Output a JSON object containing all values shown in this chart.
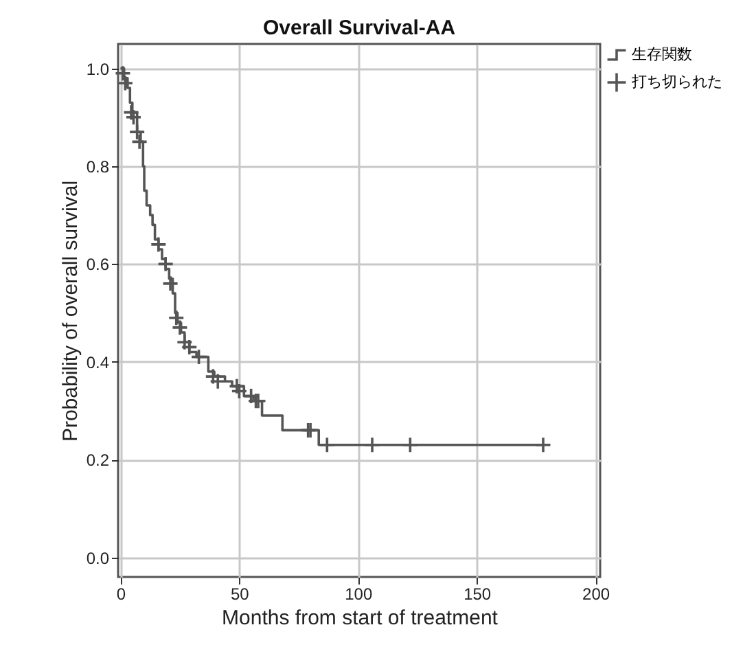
{
  "chart_data": {
    "type": "step",
    "title": "Overall Survival-AA",
    "xlabel": "Months from start of treatment",
    "ylabel": "Probability of overall survival",
    "xlim": [
      -1,
      202
    ],
    "xticks": [
      0,
      50,
      100,
      150,
      200
    ],
    "ylim": [
      -0.04,
      1.05
    ],
    "yticks": [
      {
        "value": 0,
        "label": "0.0"
      },
      0.2,
      0.4,
      0.6,
      0.8,
      {
        "value": 1,
        "label": "1.0"
      }
    ],
    "grid": true,
    "legend": "top right",
    "series": [
      {
        "name": "生存関数",
        "color": "#555555",
        "x": [
          0,
          1.5,
          3,
          4,
          5,
          7,
          8.5,
          9.5,
          10,
          11,
          12.5,
          13.5,
          14.5,
          16,
          17.5,
          19,
          20.5,
          22,
          23,
          24,
          25.5,
          27,
          29,
          32,
          37,
          39.5,
          44,
          47,
          52,
          56,
          59.6,
          68.2,
          83.5,
          178.3
        ],
        "values": [
          1.0,
          0.98,
          0.96,
          0.93,
          0.91,
          0.87,
          0.85,
          0.8,
          0.75,
          0.72,
          0.7,
          0.68,
          0.65,
          0.63,
          0.61,
          0.59,
          0.57,
          0.54,
          0.5,
          0.48,
          0.46,
          0.44,
          0.42,
          0.41,
          0.38,
          0.37,
          0.36,
          0.35,
          0.33,
          0.32,
          0.29,
          0.26,
          0.23,
          0.23
        ]
      },
      {
        "name": "打ち切られた",
        "type": "scatter",
        "marker": "cross",
        "color": "#555555",
        "x": [
          1,
          2,
          4.5,
          5.5,
          7,
          8,
          16,
          19,
          21,
          23.5,
          25,
          27,
          29,
          33,
          39,
          41,
          49,
          50,
          55,
          57,
          58,
          79,
          80,
          87,
          106,
          122,
          178
        ],
        "values": [
          0.99,
          0.97,
          0.91,
          0.9,
          0.87,
          0.85,
          0.64,
          0.6,
          0.56,
          0.49,
          0.47,
          0.44,
          0.43,
          0.41,
          0.37,
          0.36,
          0.35,
          0.34,
          0.33,
          0.32,
          0.32,
          0.26,
          0.26,
          0.23,
          0.23,
          0.23,
          0.23
        ]
      }
    ]
  }
}
